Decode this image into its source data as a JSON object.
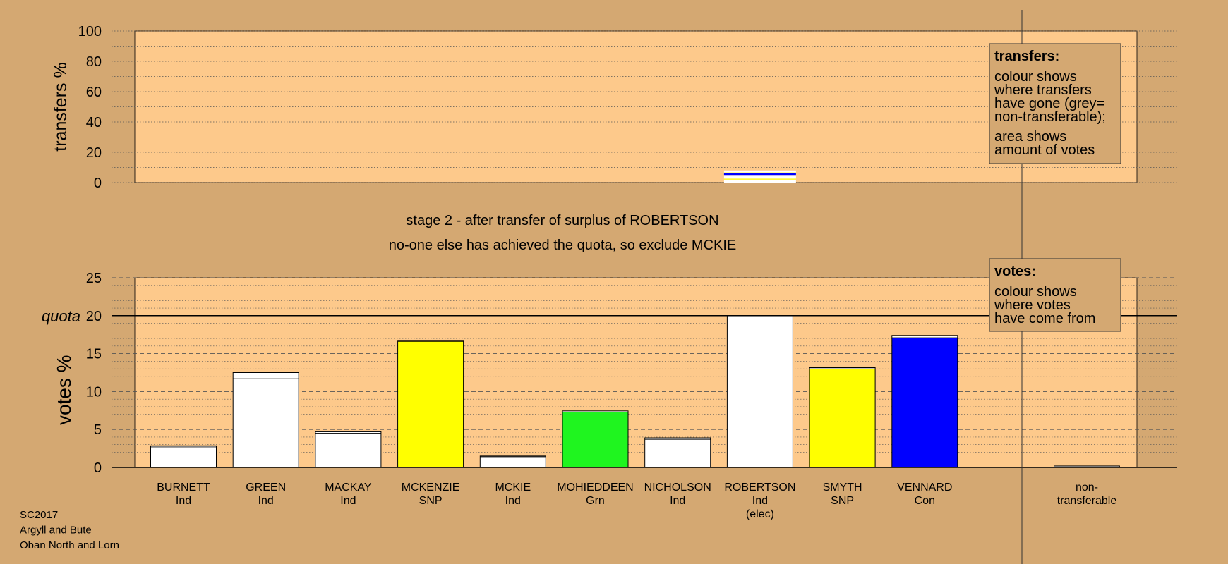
{
  "colors": {
    "background": "#d4a872",
    "plot_panel": "#fdc98b",
    "legend_box": "#d4a872",
    "Ind": "#ffffff",
    "SNP": "#ffff00",
    "Grn": "#1ff51f",
    "Con": "#0000ff",
    "non_transferable": "#a0a0a0"
  },
  "chart_data": [
    {
      "type": "bar",
      "role": "transfers",
      "ylabel": "transfers %",
      "ylim": [
        0,
        100
      ],
      "yticks": [
        "0",
        "20",
        "40",
        "60",
        "80",
        "100"
      ],
      "legend": {
        "title": "transfers:",
        "lines_a": [
          "colour shows",
          "where transfers",
          "have gone (grey=",
          "non-transferable);"
        ],
        "lines_b": [
          "area shows",
          "amount of votes"
        ]
      },
      "transfer_bar": {
        "from": "ROBERTSON",
        "segments": [
          {
            "party": "Ind",
            "value": 2.0
          },
          {
            "party": "SNP",
            "value": 0.6
          },
          {
            "party": "Ind",
            "value": 2.4
          },
          {
            "party": "Con",
            "value": 1.4
          },
          {
            "party": "SNP",
            "value": 0.3
          },
          {
            "party": "Ind",
            "value": 1.3
          }
        ]
      }
    },
    {
      "type": "bar",
      "role": "votes",
      "title": "stage 2 - after transfer of surplus of ROBERTSON",
      "subtitle": "no-one else has achieved the quota, so exclude MCKIE",
      "ylabel": "votes %",
      "ylim": [
        0,
        25
      ],
      "yticks": [
        "0",
        "5",
        "10",
        "15",
        "20",
        "25"
      ],
      "quota": {
        "label": "quota",
        "value": 20
      },
      "legend": {
        "title": "votes:",
        "lines": [
          "colour shows",
          "where votes",
          "have come from"
        ]
      },
      "categories": [
        "BURNETT",
        "GREEN",
        "MACKAY",
        "MCKENZIE",
        "MCKIE",
        "MOHIEDDEEN",
        "NICHOLSON",
        "ROBERTSON",
        "SMYTH",
        "VENNARD",
        "non-transferable"
      ],
      "candidates": [
        {
          "name": "BURNETT",
          "party": "Ind",
          "note": "",
          "first": 2.7,
          "transfer": 0.15
        },
        {
          "name": "GREEN",
          "party": "Ind",
          "note": "",
          "first": 11.7,
          "transfer": 0.8
        },
        {
          "name": "MACKAY",
          "party": "Ind",
          "note": "",
          "first": 4.5,
          "transfer": 0.2
        },
        {
          "name": "MCKENZIE",
          "party": "SNP",
          "note": "",
          "first": 16.6,
          "transfer": 0.15
        },
        {
          "name": "MCKIE",
          "party": "Ind",
          "note": "",
          "first": 1.4,
          "transfer": 0.1
        },
        {
          "name": "MOHIEDDEEN",
          "party": "Grn",
          "note": "",
          "first": 7.3,
          "transfer": 0.15
        },
        {
          "name": "NICHOLSON",
          "party": "Ind",
          "note": "",
          "first": 3.7,
          "transfer": 0.2
        },
        {
          "name": "ROBERTSON",
          "party": "Ind",
          "note": "(elec)",
          "first": 20.0,
          "transfer": 0
        },
        {
          "name": "SMYTH",
          "party": "SNP",
          "note": "",
          "first": 13.0,
          "transfer": 0.15
        },
        {
          "name": "VENNARD",
          "party": "Con",
          "note": "",
          "first": 17.1,
          "transfer": 0.3
        }
      ],
      "non_transferable": {
        "label_lines": [
          "non-",
          "transferable"
        ],
        "value": 0.2
      }
    }
  ],
  "footer": {
    "lines": [
      "SC2017",
      "Argyll and Bute",
      "Oban North and Lorn"
    ]
  }
}
